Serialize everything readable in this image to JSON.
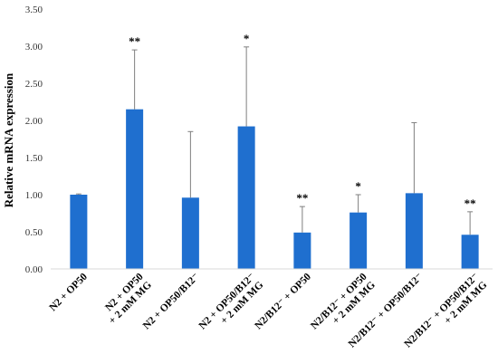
{
  "chart_data": {
    "type": "bar",
    "title": "",
    "xlabel": "",
    "ylabel": "Relative mRNA expression",
    "ylim": [
      0,
      3.5
    ],
    "yticks": [
      "0.00",
      "0.50",
      "1.00",
      "1.50",
      "2.00",
      "2.50",
      "3.00",
      "3.50"
    ],
    "grid": false,
    "legend": "none",
    "bar_color": "#1f6fcf",
    "error_bar_color": "#7f7f7f",
    "categories": [
      {
        "line1": "N2 + OP50",
        "line2": ""
      },
      {
        "line1": "N2 + OP50",
        "line2": "+ 2 mM MG"
      },
      {
        "line1": "N2 + OP50/B12⁻",
        "line2": ""
      },
      {
        "line1": "N2 + OP50/B12⁻",
        "line2": "+ 2 mM MG"
      },
      {
        "line1": "N2/B12⁻ + OP50",
        "line2": ""
      },
      {
        "line1": "N2/B12⁻ + OP50",
        "line2": "+ 2 mM MG"
      },
      {
        "line1": "N2/B12⁻ + OP50/B12⁻",
        "line2": ""
      },
      {
        "line1": "N2/B12⁻ + OP50/B12⁻",
        "line2": "+ 2 mM MG"
      }
    ],
    "values": [
      1.0,
      2.15,
      0.96,
      1.92,
      0.49,
      0.76,
      1.02,
      0.46
    ],
    "error_upper": [
      0.01,
      0.8,
      0.89,
      1.07,
      0.35,
      0.24,
      0.95,
      0.31
    ],
    "significance": [
      "",
      "**",
      "",
      "*",
      "**",
      "*",
      "",
      "**"
    ]
  }
}
